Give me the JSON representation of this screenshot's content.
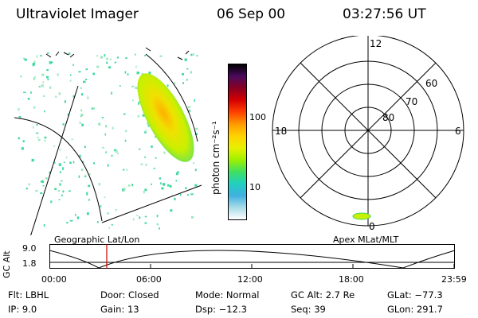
{
  "header": {
    "instrument": "Ultraviolet Imager",
    "date": "06 Sep 00",
    "time": "03:27:56 UT"
  },
  "colorbar": {
    "unit_label": "photon cm⁻²s⁻¹",
    "ticks": [
      "100",
      "10"
    ]
  },
  "polar_plot": {
    "mlt_labels": [
      "12",
      "18",
      "6",
      "0"
    ],
    "latitude_labels": [
      "60",
      "70",
      "80"
    ]
  },
  "panel_labels": {
    "left": "Geographic Lat/Lon",
    "right": "Apex MLat/MLT"
  },
  "altitude_plot": {
    "y_label": "GC Alt",
    "y_ticks": [
      "9.0",
      "1.8"
    ],
    "x_ticks": [
      "00:00",
      "06:00",
      "12:00",
      "18:00",
      "23:59"
    ]
  },
  "info": {
    "flt": "Flt: LBHL",
    "ip": "IP:  9.0",
    "door": "Door: Closed",
    "gain": "Gain: 13",
    "mode": "Mode: Normal",
    "dsp": "Dsp:  −12.3",
    "gc_alt": "GC Alt: 2.7 Re",
    "seq": "Seq: 39",
    "glat": "GLat: −77.3",
    "glon": "GLon: 291.7"
  },
  "colors": {
    "colorbar_stops": [
      "#000000",
      "#4a0a5e",
      "#8a0020",
      "#d40000",
      "#ff4000",
      "#ff9a00",
      "#ffd200",
      "#e8f000",
      "#9ef000",
      "#40e060",
      "#20d0c0",
      "#40b0e0",
      "#a8dce8",
      "#ffffff"
    ],
    "time_marker": "#cc0000",
    "oval": "#c8f000",
    "specks": "#40d8a0"
  }
}
